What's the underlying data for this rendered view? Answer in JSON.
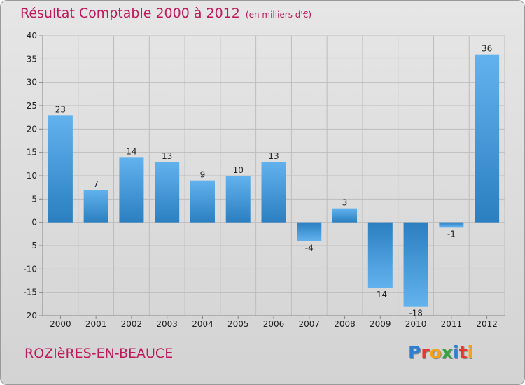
{
  "chart_data": {
    "type": "bar",
    "title": "Résultat Comptable 2000 à 2012",
    "subtitle": "(en milliers d'€)",
    "categories": [
      "2000",
      "2001",
      "2002",
      "2003",
      "2004",
      "2005",
      "2006",
      "2007",
      "2008",
      "2009",
      "2010",
      "2011",
      "2012"
    ],
    "values": [
      23,
      7,
      14,
      13,
      9,
      10,
      13,
      -4,
      3,
      -14,
      -18,
      -1,
      36
    ],
    "value_labels": [
      "23",
      "7",
      "14",
      "13",
      "9",
      "10",
      "13",
      "-4",
      "3",
      "-14",
      "-18",
      "-1",
      "36"
    ],
    "ylim": [
      -20,
      40
    ],
    "yticks": [
      -20,
      -15,
      -10,
      -5,
      0,
      5,
      10,
      15,
      20,
      25,
      30,
      35,
      40
    ],
    "ytick_labels": [
      "-20",
      "-15",
      "-10",
      "-5",
      "0",
      "5",
      "10",
      "15",
      "20",
      "25",
      "30",
      "35",
      "40"
    ],
    "xlabel": "",
    "ylabel": "",
    "grid": true,
    "bar_color": "#2f88cc",
    "bar_color_light": "#62b2ee"
  },
  "footer": {
    "town": "ROZIèRES-EN-BEAUCE",
    "logo_letters": [
      "P",
      "r",
      "o",
      "x",
      "i",
      "t",
      "i"
    ],
    "logo_colors": [
      "#2f7fd0",
      "#e8382e",
      "#f4a21a",
      "#3aa241",
      "#2f7fd0",
      "#e8382e",
      "#f4a21a"
    ]
  }
}
